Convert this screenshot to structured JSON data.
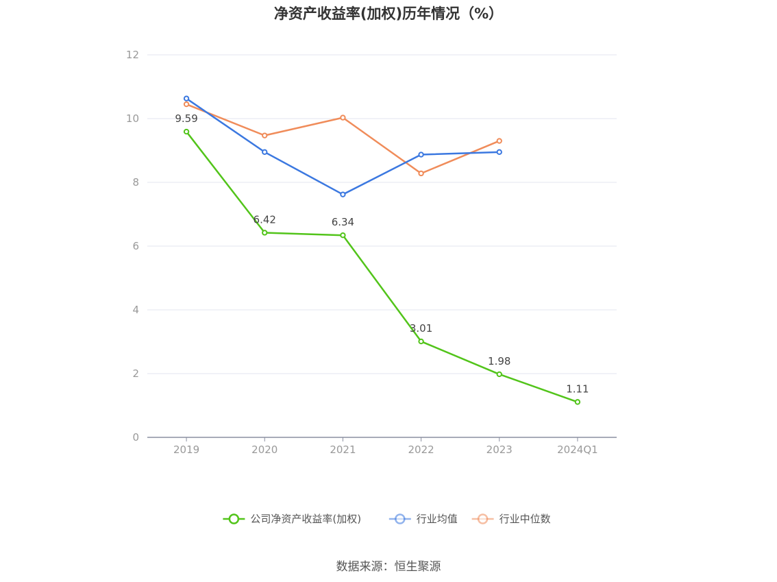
{
  "chart_data": {
    "type": "line",
    "title": "净资产收益率(加权)历年情况（%）",
    "categories": [
      "2019",
      "2020",
      "2021",
      "2022",
      "2023",
      "2024Q1"
    ],
    "ylim": [
      0,
      12
    ],
    "yticks": [
      0,
      2,
      4,
      6,
      8,
      10,
      12
    ],
    "grid": true,
    "legend_position": "bottom-center",
    "series": [
      {
        "name": "公司净资产收益率(加权)",
        "color": "#52c41a",
        "values": [
          9.59,
          6.42,
          6.34,
          3.01,
          1.98,
          1.11
        ],
        "labels": [
          "9.59",
          "6.42",
          "6.34",
          "3.01",
          "1.98",
          "1.11"
        ]
      },
      {
        "name": "行业均值",
        "color": "#3b78e0",
        "values": [
          10.63,
          8.95,
          7.62,
          8.87,
          8.95,
          null
        ]
      },
      {
        "name": "行业中位数",
        "color": "#f08c5a",
        "values": [
          10.45,
          9.47,
          10.03,
          8.28,
          9.3,
          null
        ]
      }
    ]
  },
  "footer": {
    "source": "数据来源：恒生聚源"
  }
}
